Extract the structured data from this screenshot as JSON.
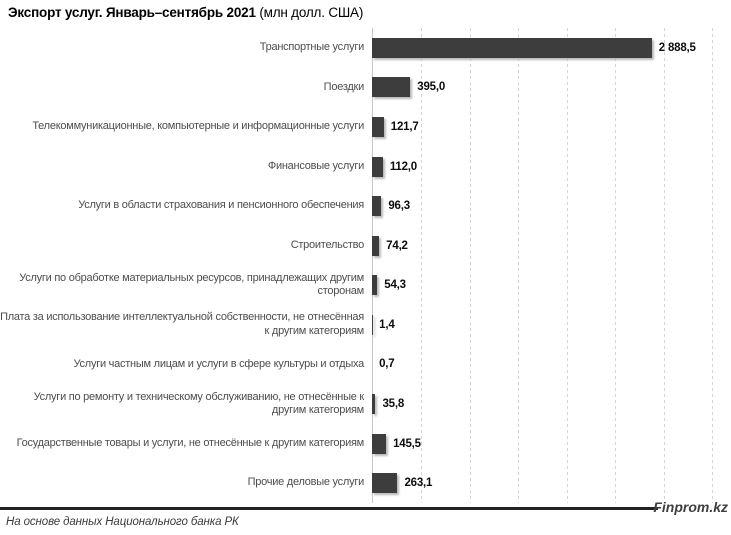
{
  "header": {
    "title_bold": "Экспорт услуг. Январь–сентябрь 2021",
    "title_regular": "(млн долл. США)"
  },
  "chart_data": {
    "type": "bar",
    "orientation": "horizontal",
    "title": "Экспорт услуг. Январь–сентябрь 2021 (млн долл. США)",
    "xlabel": "",
    "ylabel": "",
    "xlim": [
      0,
      3500
    ],
    "gridline_step": 500,
    "grid": "vertical-dashed",
    "legend": "none",
    "categories": [
      "Транспортные услуги",
      "Поездки",
      "Телекоммуникационные, компьютерные и информационные услуги",
      "Финансовые услуги",
      "Услуги в области страхования и пенсионного обеспечения",
      "Строительство",
      "Услуги по обработке материальных ресурсов, принадлежащих другим сторонам",
      "Плата за использование интеллектуальной собственности, не отнесённая к другим категориям",
      "Услуги частным лицам и услуги в сфере культуры и отдыха",
      "Услуги по ремонту и техническому обслуживанию, не отнесённые к другим категориям",
      "Государственные товары и услуги, не отнесённые к другим категориям",
      "Прочие деловые услуги"
    ],
    "values": [
      2888.5,
      395.0,
      121.7,
      112.0,
      96.3,
      74.2,
      54.3,
      1.4,
      0.7,
      35.8,
      145.5,
      263.1
    ],
    "value_labels": [
      "2 888,5",
      "395,0",
      "121,7",
      "112,0",
      "96,3",
      "74,2",
      "54,3",
      "1,4",
      "0,7",
      "35,8",
      "145,5",
      "263,1"
    ]
  },
  "colors": {
    "bar": "#3d3d3d",
    "category_label": "#4d4d4d",
    "grid": "#d4d4d4",
    "axis": "#c6c6c6",
    "separator": "#232323"
  },
  "footer": {
    "source_note": "На основе данных Национального банка РК",
    "brand": "Finprom.kz"
  }
}
